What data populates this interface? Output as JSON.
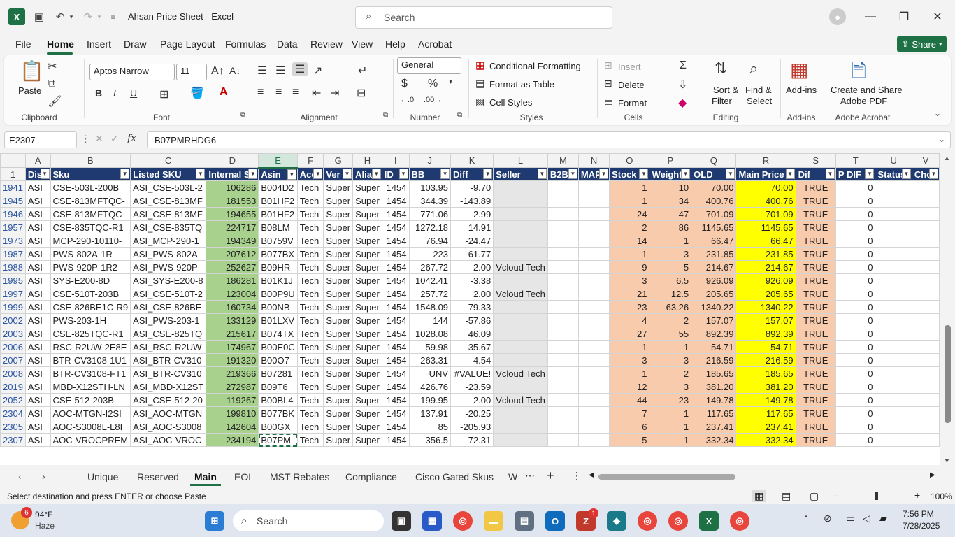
{
  "window": {
    "title": "Ahsan Price Sheet  -  Excel",
    "search_placeholder": "Search"
  },
  "menu": [
    "File",
    "Home",
    "Insert",
    "Draw",
    "Page Layout",
    "Formulas",
    "Data",
    "Review",
    "View",
    "Help",
    "Acrobat"
  ],
  "share_label": "Share",
  "ribbon": {
    "clipboard": {
      "paste": "Paste",
      "label": "Clipboard"
    },
    "font": {
      "name": "Aptos Narrow",
      "size": "11",
      "label": "Font"
    },
    "alignment": {
      "label": "Alignment"
    },
    "number": {
      "format": "General",
      "label": "Number",
      "currency": "$",
      "percent": "%"
    },
    "styles": {
      "conditional": "Conditional Formatting",
      "table": "Format as Table",
      "cell_styles": "Cell Styles",
      "label": "Styles"
    },
    "cells": {
      "insert": "Insert",
      "delete": "Delete",
      "format": "Format",
      "label": "Cells"
    },
    "editing": {
      "sort": "Sort &",
      "filter": "Filter",
      "find": "Find &",
      "select": "Select",
      "label": "Editing"
    },
    "addins": {
      "button": "Add-ins",
      "label": "Add-ins"
    },
    "acrobat": {
      "line1": "Create and Share",
      "line2": "Adobe PDF",
      "label": "Adobe Acrobat"
    }
  },
  "formula_bar": {
    "name_box": "E2307",
    "fx": "fx",
    "value": "B07PMRHDG6"
  },
  "columns": [
    "A",
    "B",
    "C",
    "D",
    "E",
    "F",
    "G",
    "H",
    "I",
    "J",
    "K",
    "L",
    "M",
    "N",
    "O",
    "P",
    "Q",
    "R",
    "S",
    "T",
    "U",
    "V"
  ],
  "header_row_num": "1",
  "headers": [
    "Dis",
    "Sku",
    "Listed SKU",
    "Internal S",
    "Asin",
    "Acc",
    "Ver",
    "Alia",
    "ID",
    "BB",
    "Diff",
    "Seller",
    "B2B",
    "MAP",
    "Stock",
    "Weight",
    "OLD",
    "Main Price",
    "Dif",
    "P DIF",
    "Status",
    "Cho"
  ],
  "rows": [
    {
      "n": "1941",
      "c": [
        "ASI",
        "CSE-503L-200B",
        "ASI_CSE-503L-2",
        "106286",
        "B004D2",
        "Tech",
        "Super",
        "Super",
        "1454",
        "103.95",
        "-9.70",
        "",
        "",
        "",
        "1",
        "10",
        "70.00",
        "70.00",
        "TRUE",
        "0",
        "",
        ""
      ]
    },
    {
      "n": "1945",
      "c": [
        "ASI",
        "CSE-813MFTQC-",
        "ASI_CSE-813MF",
        "181553",
        "B01HF2",
        "Tech",
        "Super",
        "Super",
        "1454",
        "344.39",
        "-143.89",
        "",
        "",
        "",
        "1",
        "34",
        "400.76",
        "400.76",
        "TRUE",
        "0",
        "",
        ""
      ]
    },
    {
      "n": "1946",
      "c": [
        "ASI",
        "CSE-813MFTQC-",
        "ASI_CSE-813MF",
        "194655",
        "B01HF2",
        "Tech",
        "Super",
        "Super",
        "1454",
        "771.06",
        "-2.99",
        "",
        "",
        "",
        "24",
        "47",
        "701.09",
        "701.09",
        "TRUE",
        "0",
        "",
        ""
      ]
    },
    {
      "n": "1957",
      "c": [
        "ASI",
        "CSE-835TQC-R1",
        "ASI_CSE-835TQ",
        "224717",
        "B08LM",
        "Tech",
        "Super",
        "Super",
        "1454",
        "1272.18",
        "14.91",
        "",
        "",
        "",
        "2",
        "86",
        "1145.65",
        "1145.65",
        "TRUE",
        "0",
        "",
        ""
      ]
    },
    {
      "n": "1973",
      "c": [
        "ASI",
        "MCP-290-10110-",
        "ASI_MCP-290-1",
        "194349",
        "B0759V",
        "Tech",
        "Super",
        "Super",
        "1454",
        "76.94",
        "-24.47",
        "",
        "",
        "",
        "14",
        "1",
        "66.47",
        "66.47",
        "TRUE",
        "0",
        "",
        ""
      ]
    },
    {
      "n": "1987",
      "c": [
        "ASI",
        "PWS-802A-1R",
        "ASI_PWS-802A-",
        "207612",
        "B077BX",
        "Tech",
        "Super",
        "Super",
        "1454",
        "223",
        "-61.77",
        "",
        "",
        "",
        "1",
        "3",
        "231.85",
        "231.85",
        "TRUE",
        "0",
        "",
        ""
      ]
    },
    {
      "n": "1988",
      "c": [
        "ASI",
        "PWS-920P-1R2",
        "ASI_PWS-920P-",
        "252627",
        "B09HR",
        "Tech",
        "Super",
        "Super",
        "1454",
        "267.72",
        "2.00",
        "Vcloud Tech",
        "",
        "",
        "9",
        "5",
        "214.67",
        "214.67",
        "TRUE",
        "0",
        "",
        ""
      ]
    },
    {
      "n": "1995",
      "c": [
        "ASI",
        "SYS-E200-8D",
        "ASI_SYS-E200-8",
        "186281",
        "B01K1J",
        "Tech",
        "Super",
        "Super",
        "1454",
        "1042.41",
        "-3.38",
        "",
        "",
        "",
        "3",
        "6.5",
        "926.09",
        "926.09",
        "TRUE",
        "0",
        "",
        ""
      ]
    },
    {
      "n": "1997",
      "c": [
        "ASI",
        "CSE-510T-203B",
        "ASI_CSE-510T-2",
        "123004",
        "B00P9U",
        "Tech",
        "Super",
        "Super",
        "1454",
        "257.72",
        "2.00",
        "Vcloud Tech",
        "",
        "",
        "21",
        "12.5",
        "205.65",
        "205.65",
        "TRUE",
        "0",
        "",
        ""
      ]
    },
    {
      "n": "1999",
      "c": [
        "ASI",
        "CSE-826BE1C-R9",
        "ASI_CSE-826BE",
        "160734",
        "B00NB",
        "Tech",
        "Super",
        "Super",
        "1454",
        "1548.09",
        "79.33",
        "",
        "",
        "",
        "23",
        "63.26",
        "1340.22",
        "1340.22",
        "TRUE",
        "0",
        "",
        ""
      ]
    },
    {
      "n": "2002",
      "c": [
        "ASI",
        "PWS-203-1H",
        "ASI_PWS-203-1",
        "133129",
        "B01LXV",
        "Tech",
        "Super",
        "Super",
        "1454",
        "144",
        "-57.86",
        "",
        "",
        "",
        "4",
        "2",
        "157.07",
        "157.07",
        "TRUE",
        "0",
        "",
        ""
      ]
    },
    {
      "n": "2003",
      "c": [
        "ASI",
        "CSE-825TQC-R1",
        "ASI_CSE-825TQ",
        "215617",
        "B074TX",
        "Tech",
        "Super",
        "Super",
        "1454",
        "1028.08",
        "46.09",
        "",
        "",
        "",
        "27",
        "55",
        "892.39",
        "892.39",
        "TRUE",
        "0",
        "",
        ""
      ]
    },
    {
      "n": "2006",
      "c": [
        "ASI",
        "RSC-R2UW-2E8E",
        "ASI_RSC-R2UW",
        "174967",
        "B00E0C",
        "Tech",
        "Super",
        "Super",
        "1454",
        "59.98",
        "-35.67",
        "",
        "",
        "",
        "1",
        "1",
        "54.71",
        "54.71",
        "TRUE",
        "0",
        "",
        ""
      ]
    },
    {
      "n": "2007",
      "c": [
        "ASI",
        "BTR-CV3108-1U1",
        "ASI_BTR-CV310",
        "191320",
        "B00O7",
        "Tech",
        "Super",
        "Super",
        "1454",
        "263.31",
        "-4.54",
        "",
        "",
        "",
        "3",
        "3",
        "216.59",
        "216.59",
        "TRUE",
        "0",
        "",
        ""
      ]
    },
    {
      "n": "2008",
      "c": [
        "ASI",
        "BTR-CV3108-FT1",
        "ASI_BTR-CV310",
        "219366",
        "B07281",
        "Tech",
        "Super",
        "Super",
        "1454",
        "UNV",
        "#VALUE!",
        "Vcloud Tech",
        "",
        "",
        "1",
        "2",
        "185.65",
        "185.65",
        "TRUE",
        "0",
        "",
        ""
      ]
    },
    {
      "n": "2019",
      "c": [
        "ASI",
        "MBD-X12STH-LN",
        "ASI_MBD-X12ST",
        "272987",
        "B09T6",
        "Tech",
        "Super",
        "Super",
        "1454",
        "426.76",
        "-23.59",
        "",
        "",
        "",
        "12",
        "3",
        "381.20",
        "381.20",
        "TRUE",
        "0",
        "",
        ""
      ]
    },
    {
      "n": "2052",
      "c": [
        "ASI",
        "CSE-512-203B",
        "ASI_CSE-512-20",
        "119267",
        "B00BL4",
        "Tech",
        "Super",
        "Super",
        "1454",
        "199.95",
        "2.00",
        "Vcloud Tech",
        "",
        "",
        "44",
        "23",
        "149.78",
        "149.78",
        "TRUE",
        "0",
        "",
        ""
      ]
    },
    {
      "n": "2304",
      "c": [
        "ASI",
        "AOC-MTGN-I2SI",
        "ASI_AOC-MTGN",
        "199810",
        "B077BK",
        "Tech",
        "Super",
        "Super",
        "1454",
        "137.91",
        "-20.25",
        "",
        "",
        "",
        "7",
        "1",
        "117.65",
        "117.65",
        "TRUE",
        "0",
        "",
        ""
      ]
    },
    {
      "n": "2305",
      "c": [
        "ASI",
        "AOC-S3008L-L8I",
        "ASI_AOC-S3008",
        "142604",
        "B00GX",
        "Tech",
        "Super",
        "Super",
        "1454",
        "85",
        "-205.93",
        "",
        "",
        "",
        "6",
        "1",
        "237.41",
        "237.41",
        "TRUE",
        "0",
        "",
        ""
      ]
    },
    {
      "n": "2307",
      "c": [
        "ASI",
        "AOC-VROCPREM",
        "ASI_AOC-VROC",
        "234194",
        "B07PM",
        "Tech",
        "Super",
        "Super",
        "1454",
        "356.5",
        "-72.31",
        "",
        "",
        "",
        "5",
        "1",
        "332.34",
        "332.34",
        "TRUE",
        "0",
        "",
        ""
      ]
    }
  ],
  "sheet_tabs": [
    "Unique",
    "Reserved",
    "Main",
    "EOL",
    "MST Rebates",
    "Compliance",
    "Cisco Gated Skus",
    "W"
  ],
  "active_tab": "Main",
  "status": {
    "message": "Select destination and press ENTER or choose Paste",
    "zoom": "100%"
  },
  "taskbar": {
    "temp": "94°F",
    "weather": "Haze",
    "search": "Search",
    "time": "7:56 PM",
    "date": "7/28/2025",
    "badge": "6",
    "mail_badge": "1"
  }
}
